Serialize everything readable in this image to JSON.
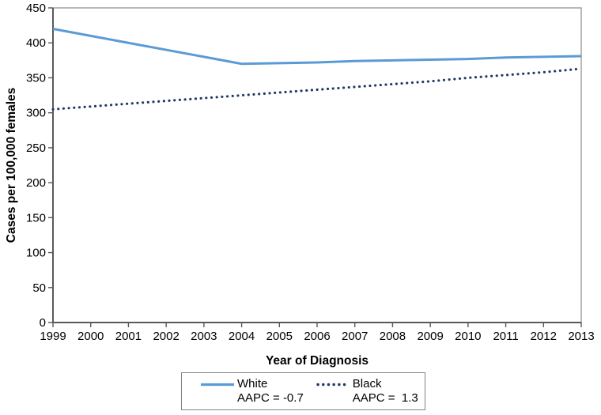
{
  "chart_data": {
    "type": "line",
    "title": "",
    "xlabel": "Year of Diagnosis",
    "ylabel": "Cases per 100,000 females",
    "categories": [
      "1999",
      "2000",
      "2001",
      "2002",
      "2003",
      "2004",
      "2005",
      "2006",
      "2007",
      "2008",
      "2009",
      "2010",
      "2011",
      "2012",
      "2013"
    ],
    "yticks": [
      0,
      50,
      100,
      150,
      200,
      250,
      300,
      350,
      400,
      450
    ],
    "ylim": [
      0,
      450
    ],
    "grid": false,
    "legend_position": "bottom",
    "series": [
      {
        "name": "White",
        "aapc_label": "AAPC = -0.7",
        "style": "solid",
        "color": "#5B9BD5",
        "values": [
          420,
          410,
          400,
          390,
          380,
          370,
          371,
          372,
          374,
          375,
          376,
          377,
          379,
          380,
          381
        ]
      },
      {
        "name": "Black",
        "aapc_label": "AAPC =  1.3",
        "style": "dotted",
        "color": "#1F3864",
        "values": [
          305,
          309,
          313,
          317,
          321,
          325,
          329,
          333,
          337,
          341,
          345,
          350,
          354,
          358,
          363
        ]
      }
    ]
  },
  "colors": {
    "axis": "#595959",
    "plot_border": "#8a8a8a",
    "tick_text": "#000000"
  }
}
